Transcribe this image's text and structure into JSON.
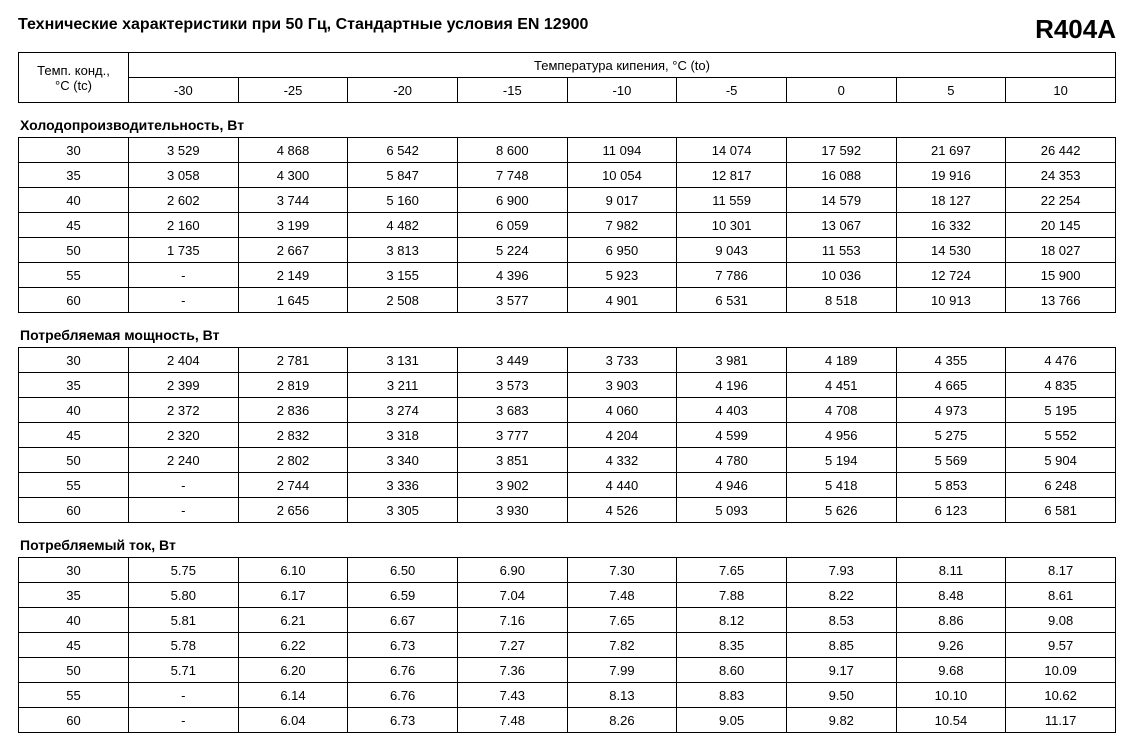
{
  "page": {
    "title": "Технические характеристики при 50 Гц, Стандартные условия EN 12900",
    "brand": "R404A",
    "background_color": "#ffffff",
    "text_color": "#000000",
    "border_color": "#000000",
    "font_family": "Arial",
    "body_fontsize": 13,
    "title_fontsize": 16,
    "brand_fontsize": 26,
    "section_title_fontsize": 14
  },
  "head": {
    "row_label_line1": "Темп. конд.,",
    "row_label_line2": "°C (tc)",
    "span_label": "Температура кипения, °C (to)",
    "temps": [
      "-30",
      "-25",
      "-20",
      "-15",
      "-10",
      "-5",
      "0",
      "5",
      "10"
    ]
  },
  "sections": {
    "capacity": {
      "title": "Холодопроизводительность, Вт",
      "row_temps": [
        "30",
        "35",
        "40",
        "45",
        "50",
        "55",
        "60"
      ],
      "rows": [
        [
          "3 529",
          "4 868",
          "6 542",
          "8 600",
          "11 094",
          "14 074",
          "17 592",
          "21 697",
          "26 442"
        ],
        [
          "3 058",
          "4 300",
          "5 847",
          "7 748",
          "10 054",
          "12 817",
          "16 088",
          "19 916",
          "24 353"
        ],
        [
          "2 602",
          "3 744",
          "5 160",
          "6 900",
          "9 017",
          "11 559",
          "14 579",
          "18 127",
          "22 254"
        ],
        [
          "2 160",
          "3 199",
          "4 482",
          "6 059",
          "7 982",
          "10 301",
          "13 067",
          "16 332",
          "20 145"
        ],
        [
          "1 735",
          "2 667",
          "3 813",
          "5 224",
          "6 950",
          "9 043",
          "11 553",
          "14 530",
          "18 027"
        ],
        [
          "-",
          "2 149",
          "3 155",
          "4 396",
          "5 923",
          "7 786",
          "10 036",
          "12 724",
          "15 900"
        ],
        [
          "-",
          "1 645",
          "2 508",
          "3 577",
          "4 901",
          "6 531",
          "8 518",
          "10 913",
          "13 766"
        ]
      ]
    },
    "power": {
      "title": "Потребляемая мощность, Вт",
      "row_temps": [
        "30",
        "35",
        "40",
        "45",
        "50",
        "55",
        "60"
      ],
      "rows": [
        [
          "2 404",
          "2 781",
          "3 131",
          "3 449",
          "3 733",
          "3 981",
          "4 189",
          "4 355",
          "4 476"
        ],
        [
          "2 399",
          "2 819",
          "3 211",
          "3 573",
          "3 903",
          "4 196",
          "4 451",
          "4 665",
          "4 835"
        ],
        [
          "2 372",
          "2 836",
          "3 274",
          "3 683",
          "4 060",
          "4 403",
          "4 708",
          "4 973",
          "5 195"
        ],
        [
          "2 320",
          "2 832",
          "3 318",
          "3 777",
          "4 204",
          "4 599",
          "4 956",
          "5 275",
          "5 552"
        ],
        [
          "2 240",
          "2 802",
          "3 340",
          "3 851",
          "4 332",
          "4 780",
          "5 194",
          "5 569",
          "5 904"
        ],
        [
          "-",
          "2 744",
          "3 336",
          "3 902",
          "4 440",
          "4 946",
          "5 418",
          "5 853",
          "6 248"
        ],
        [
          "-",
          "2 656",
          "3 305",
          "3 930",
          "4 526",
          "5 093",
          "5 626",
          "6 123",
          "6 581"
        ]
      ]
    },
    "current": {
      "title": "Потребляемый ток, Вт",
      "row_temps": [
        "30",
        "35",
        "40",
        "45",
        "50",
        "55",
        "60"
      ],
      "rows": [
        [
          "5.75",
          "6.10",
          "6.50",
          "6.90",
          "7.30",
          "7.65",
          "7.93",
          "8.11",
          "8.17"
        ],
        [
          "5.80",
          "6.17",
          "6.59",
          "7.04",
          "7.48",
          "7.88",
          "8.22",
          "8.48",
          "8.61"
        ],
        [
          "5.81",
          "6.21",
          "6.67",
          "7.16",
          "7.65",
          "8.12",
          "8.53",
          "8.86",
          "9.08"
        ],
        [
          "5.78",
          "6.22",
          "6.73",
          "7.27",
          "7.82",
          "8.35",
          "8.85",
          "9.26",
          "9.57"
        ],
        [
          "5.71",
          "6.20",
          "6.76",
          "7.36",
          "7.99",
          "8.60",
          "9.17",
          "9.68",
          "10.09"
        ],
        [
          "-",
          "6.14",
          "6.76",
          "7.43",
          "8.13",
          "8.83",
          "9.50",
          "10.10",
          "10.62"
        ],
        [
          "-",
          "6.04",
          "6.73",
          "7.48",
          "8.26",
          "9.05",
          "9.82",
          "10.54",
          "11.17"
        ]
      ]
    }
  }
}
